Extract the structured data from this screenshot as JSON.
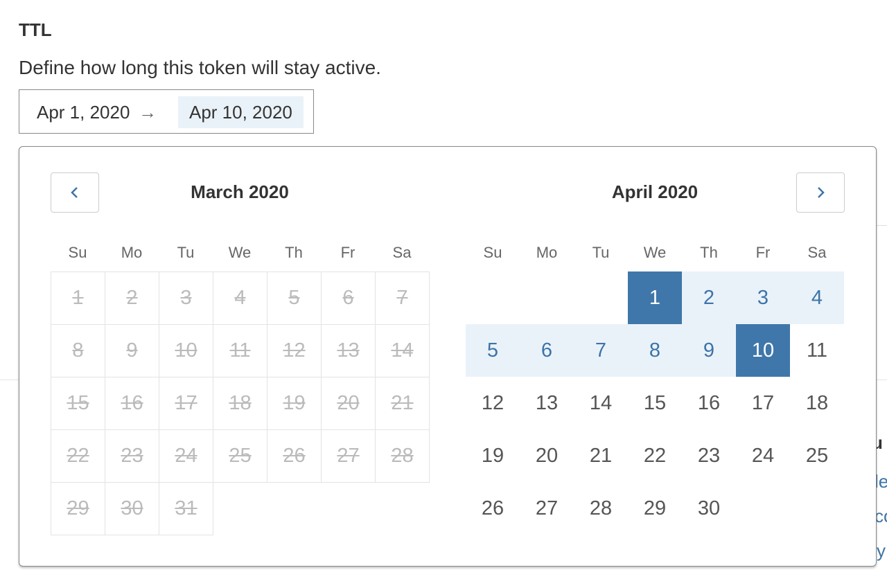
{
  "section": {
    "title": "TTL",
    "description": "Define how long this token will stay active."
  },
  "range": {
    "start": "Apr 1, 2020",
    "arrow": "→",
    "end": "Apr 10, 2020"
  },
  "background_fragments": [
    "u",
    "le",
    "co",
    "y"
  ],
  "calendar": {
    "weekdays": [
      "Su",
      "Mo",
      "Tu",
      "We",
      "Th",
      "Fr",
      "Sa"
    ],
    "months": [
      {
        "title": "March 2020",
        "start_offset": 0,
        "days": 31,
        "disabled": true
      },
      {
        "title": "April 2020",
        "start_offset": 3,
        "days": 30,
        "selected": [
          1,
          10
        ],
        "in_range": [
          2,
          3,
          4,
          5,
          6,
          7,
          8,
          9
        ]
      }
    ]
  },
  "colors": {
    "accent": "#3f77aa",
    "range": "#eaf2f9",
    "disabled": "#bbbbbb"
  }
}
